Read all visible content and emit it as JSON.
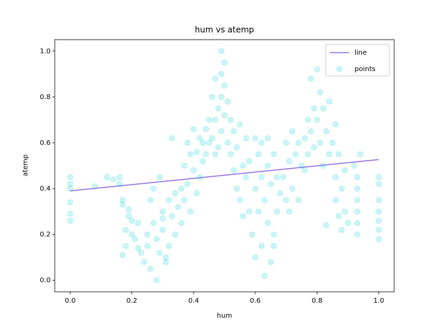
{
  "chart_data": {
    "type": "scatter",
    "title": "hum vs atemp",
    "x_label": "hum",
    "y_label": "atemp",
    "xlim": [
      -0.05,
      1.05
    ],
    "ylim": [
      -0.05,
      1.05
    ],
    "xticks": [
      {
        "value": 0,
        "label": "0.0"
      },
      {
        "value": 0.2,
        "label": "0.2"
      },
      {
        "value": 0.4,
        "label": "0.4"
      },
      {
        "value": 0.6,
        "label": "0.6"
      },
      {
        "value": 0.8,
        "label": "0.8"
      },
      {
        "value": 1,
        "label": "1.0"
      }
    ],
    "yticks": [
      {
        "value": 0,
        "label": "0.0"
      },
      {
        "value": 0.2,
        "label": "0.2"
      },
      {
        "value": 0.4,
        "label": "0.4"
      },
      {
        "value": 0.6,
        "label": "0.6"
      },
      {
        "value": 0.8,
        "label": "0.8"
      },
      {
        "value": 1,
        "label": "1.0"
      }
    ],
    "legend": "upper right",
    "series": [
      {
        "name": "line",
        "type": "line",
        "color": "#9370db",
        "x": [
          0,
          1
        ],
        "values": [
          0.39,
          0.527
        ]
      },
      {
        "name": "points",
        "type": "scatter",
        "color": "#00ced1",
        "opacity": 0.2,
        "x": [
          0,
          0,
          0,
          0,
          0,
          0,
          0.08,
          0.12,
          0.14,
          0.16,
          0.16,
          0.17,
          0.17,
          0.17,
          0.18,
          0.18,
          0.19,
          0.2,
          0.2,
          0.21,
          0.22,
          0.22,
          0.19,
          0.23,
          0.24,
          0.25,
          0.25,
          0.26,
          0.27,
          0.28,
          0.28,
          0.29,
          0.3,
          0.3,
          0.31,
          0.32,
          0.32,
          0.33,
          0.34,
          0.34,
          0.35,
          0.27,
          0.29,
          0.31,
          0.33,
          0.26,
          0.3,
          0.36,
          0.37,
          0.37,
          0.38,
          0.38,
          0.39,
          0.4,
          0.4,
          0.41,
          0.41,
          0.42,
          0.42,
          0.43,
          0.44,
          0.44,
          0.45,
          0.36,
          0.39,
          0.43,
          0.45,
          0.46,
          0.46,
          0.47,
          0.47,
          0.48,
          0.48,
          0.49,
          0.49,
          0.49,
          0.5,
          0.5,
          0.51,
          0.51,
          0.52,
          0.52,
          0.47,
          0.49,
          0.5,
          0.53,
          0.53,
          0.54,
          0.54,
          0.55,
          0.55,
          0.56,
          0.56,
          0.57,
          0.57,
          0.58,
          0.58,
          0.59,
          0.6,
          0.6,
          0.61,
          0.61,
          0.62,
          0.62,
          0.63,
          0.63,
          0.64,
          0.64,
          0.65,
          0.65,
          0.66,
          0.66,
          0.67,
          0.67,
          0.68,
          0.6,
          0.62,
          0.64,
          0.66,
          0.69,
          0.7,
          0.7,
          0.71,
          0.71,
          0.72,
          0.72,
          0.73,
          0.74,
          0.74,
          0.75,
          0.76,
          0.77,
          0.77,
          0.78,
          0.78,
          0.79,
          0.79,
          0.8,
          0.8,
          0.81,
          0.81,
          0.82,
          0.82,
          0.83,
          0.84,
          0.84,
          0.83,
          0.76,
          0.85,
          0.86,
          0.86,
          0.87,
          0.87,
          0.88,
          0.88,
          0.89,
          0.89,
          0.9,
          0.86,
          0.93,
          0.93,
          0.93,
          0.93,
          0.93,
          0.93,
          0.94,
          0.92,
          1,
          1,
          1,
          1,
          1,
          1,
          1
        ],
        "values": [
          0.26,
          0.29,
          0.34,
          0.4,
          0.42,
          0.45,
          0.41,
          0.45,
          0.44,
          0.45,
          0.42,
          0.35,
          0.33,
          0.11,
          0.22,
          0.15,
          0.28,
          0.2,
          0.26,
          0.18,
          0.25,
          0.14,
          0.31,
          0.12,
          0.08,
          0.2,
          0.15,
          0.05,
          0.25,
          0,
          0.18,
          0.12,
          0.3,
          0.22,
          0.08,
          0.35,
          0.15,
          0.28,
          0.38,
          0.2,
          0.32,
          0.4,
          0.45,
          0.1,
          0.62,
          0.35,
          0.27,
          0.25,
          0.5,
          0.35,
          0.6,
          0.42,
          0.3,
          0.66,
          0.48,
          0.38,
          0.56,
          0.62,
          0.45,
          0.52,
          0.66,
          0.55,
          0.7,
          0.4,
          0.55,
          0.6,
          0.6,
          0.8,
          0.62,
          0.88,
          0.7,
          0.75,
          0.58,
          1,
          0.9,
          0.65,
          0.85,
          0.72,
          0.78,
          0.6,
          0.7,
          0.55,
          0.55,
          0.8,
          0.95,
          0.65,
          0.48,
          0.58,
          0.4,
          0.68,
          0.35,
          0.5,
          0.28,
          0.62,
          0.45,
          0.3,
          0.52,
          0.2,
          0.4,
          0.1,
          0.55,
          0.3,
          0.15,
          0.45,
          0.02,
          0.35,
          0.25,
          0.5,
          0.08,
          0.42,
          0.2,
          0.55,
          0.3,
          0.45,
          0.38,
          0.62,
          0.6,
          0.62,
          0.15,
          0.45,
          0.35,
          0.6,
          0.3,
          0.52,
          0.65,
          0.4,
          0.55,
          0.35,
          0.6,
          0.5,
          0.62,
          0.7,
          0.55,
          0.88,
          0.65,
          0.75,
          0.58,
          0.92,
          0.7,
          0.82,
          0.6,
          0.75,
          0.5,
          0.65,
          0.78,
          0.55,
          0.24,
          0.48,
          0.6,
          0.45,
          0.35,
          0.55,
          0.28,
          0.4,
          0.22,
          0.48,
          0.3,
          0.25,
          0.68,
          0.2,
          0.25,
          0.3,
          0.35,
          0.4,
          0.45,
          0.55,
          0.5,
          0.18,
          0.22,
          0.26,
          0.3,
          0.35,
          0.42,
          0.45
        ]
      }
    ]
  }
}
